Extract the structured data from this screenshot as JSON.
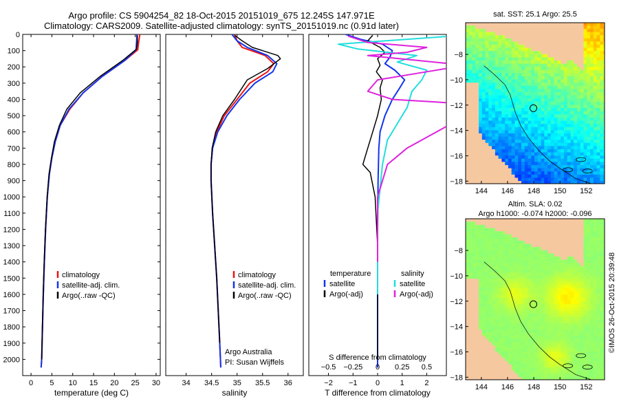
{
  "figure": {
    "title_line1": "Argo profile: CS 5904254_82 18-Oct-2015 20151019_675 12.245S 147.971E",
    "title_line2": "Climatology: CARS2009. Satellite-adjusted climatology: synTS_20151019.nc (0.91d later)",
    "credit": "©IMOS 26-Oct-2015 20:39:48"
  },
  "colors": {
    "climatology": "#ee1111",
    "satellite": "#1133ee",
    "argo": "#000000",
    "satellite_s_diff": "#22dddd",
    "argo_s_diff": "#dd22dd",
    "land": "#f6c8a0"
  },
  "chart_data": [
    {
      "type": "line",
      "id": "temperature",
      "xlabel": "temperature (deg C)",
      "ylabel": "",
      "xlim": [
        -2,
        31
      ],
      "ylim": [
        2100,
        0
      ],
      "xticks": [
        0,
        5,
        10,
        15,
        20,
        25,
        30
      ],
      "xtick_labels": [
        "0",
        "5",
        "10",
        "15",
        "20",
        "25",
        "30"
      ],
      "yticks": [
        0,
        100,
        200,
        300,
        400,
        500,
        600,
        700,
        800,
        900,
        1000,
        1100,
        1200,
        1300,
        1400,
        1500,
        1600,
        1700,
        1800,
        1900,
        2000
      ],
      "ytick_labels": [
        "0",
        "100",
        "200",
        "300",
        "400",
        "500",
        "600",
        "700",
        "800",
        "900",
        "1000",
        "1100",
        "1200",
        "1300",
        "1400",
        "1500",
        "1600",
        "1700",
        "1800",
        "1900",
        "2000"
      ],
      "legend": [
        "climatology",
        "satellite-adj. clim.",
        "Argo(..raw -QC)"
      ],
      "series": [
        {
          "name": "climatology",
          "color": "#ee1111",
          "width": 2,
          "x": [
            26.1,
            25.8,
            25.6,
            22.5,
            17.0,
            12.5,
            9.3,
            7.0,
            5.8,
            5.0,
            4.4,
            3.9,
            3.5,
            3.2,
            2.95,
            2.75,
            2.55,
            2.42
          ],
          "y": [
            0,
            50,
            95,
            160,
            260,
            360,
            460,
            560,
            660,
            760,
            860,
            1000,
            1200,
            1400,
            1600,
            1800,
            2000,
            2050
          ]
        },
        {
          "name": "satellite",
          "color": "#1133ee",
          "width": 2,
          "x": [
            25.4,
            25.3,
            25.2,
            22.5,
            17.0,
            12.5,
            9.1,
            7.0,
            5.8,
            5.0,
            4.4,
            3.9,
            3.5,
            3.2,
            2.95,
            2.75,
            2.55,
            2.42
          ],
          "y": [
            0,
            50,
            95,
            160,
            260,
            360,
            460,
            560,
            660,
            760,
            860,
            1000,
            1200,
            1400,
            1600,
            1800,
            2000,
            2050
          ]
        },
        {
          "name": "argo",
          "color": "#000000",
          "width": 1.5,
          "x": [
            25.5,
            25.5,
            25.3,
            22.0,
            16.5,
            11.8,
            8.6,
            6.8,
            5.6,
            4.9,
            4.3,
            3.85,
            3.45,
            3.15,
            2.9,
            2.72,
            2.55
          ],
          "y": [
            5,
            50,
            90,
            160,
            260,
            360,
            460,
            560,
            660,
            760,
            860,
            1000,
            1200,
            1400,
            1600,
            1800,
            2000
          ]
        }
      ]
    },
    {
      "type": "line",
      "id": "salinity",
      "xlabel": "salinity",
      "xlim": [
        33.6,
        36.3
      ],
      "ylim": [
        2100,
        0
      ],
      "xticks": [
        34,
        34.5,
        35,
        35.5,
        36
      ],
      "xtick_labels": [
        "34",
        "34.5",
        "35",
        "35.5",
        "36"
      ],
      "legend": [
        "climatology",
        "satellite-adj. clim.",
        "Argo(..raw -QC)"
      ],
      "note_line1": "Argo Australia",
      "note_line2": "PI: Susan Wijffels",
      "series": [
        {
          "name": "climatology",
          "color": "#ee1111",
          "width": 2,
          "x": [
            34.95,
            35.0,
            35.1,
            35.55,
            35.72,
            35.6,
            35.25,
            35.0,
            34.75,
            34.6,
            34.52,
            34.49,
            34.49,
            34.52,
            34.56,
            34.6,
            34.63,
            34.66,
            34.68
          ],
          "y": [
            0,
            40,
            80,
            130,
            180,
            230,
            300,
            400,
            500,
            600,
            700,
            800,
            900,
            1100,
            1300,
            1500,
            1700,
            1900,
            2050
          ]
        },
        {
          "name": "satellite",
          "color": "#1133ee",
          "width": 2,
          "x": [
            34.9,
            35.0,
            35.2,
            35.6,
            35.78,
            35.7,
            35.35,
            35.05,
            34.8,
            34.62,
            34.52,
            34.49,
            34.49,
            34.52,
            34.56,
            34.6,
            34.63,
            34.66,
            34.68
          ],
          "y": [
            0,
            40,
            80,
            130,
            180,
            230,
            300,
            400,
            500,
            600,
            700,
            800,
            900,
            1100,
            1300,
            1500,
            1700,
            1900,
            2050
          ]
        },
        {
          "name": "argo",
          "color": "#000000",
          "width": 1.5,
          "x": [
            34.95,
            35.1,
            35.3,
            35.8,
            35.85,
            35.6,
            35.2,
            34.95,
            34.72,
            34.58,
            34.51,
            34.49,
            34.49,
            34.52,
            34.56,
            34.6,
            34.63,
            34.66
          ],
          "y": [
            5,
            40,
            80,
            130,
            150,
            210,
            280,
            400,
            500,
            600,
            700,
            800,
            900,
            1100,
            1300,
            1500,
            1700,
            1900
          ]
        }
      ]
    },
    {
      "type": "line",
      "id": "differences",
      "xlabel": "T difference from climatology",
      "top_axis_title": "S difference from climatology",
      "xlim": [
        -2.8,
        2.8
      ],
      "ylim": [
        2100,
        0
      ],
      "xticks": [
        -2,
        -1,
        0,
        1,
        2
      ],
      "xtick_labels": [
        "−2",
        "−1",
        "0",
        "1",
        "2"
      ],
      "s_ticks": [
        -0.5,
        -0.25,
        0,
        0.25,
        0.5
      ],
      "s_tick_labels": [
        "−0.5",
        "−0.25",
        "0",
        "0.25",
        "0.5"
      ],
      "s_scale_per_T": 0.25,
      "legend_temperature_title": "temperature",
      "legend_salinity_title": "salinity",
      "legend_satellite": "satellite",
      "legend_argo": "Argo(-adj)",
      "series": [
        {
          "name": "T satellite",
          "color": "#1133ee",
          "width": 2,
          "x": [
            -1.3,
            -0.7,
            0.2,
            0.6,
            0.5,
            0.3,
            0.7,
            1.1,
            0.9,
            0.6,
            0.3,
            0.1,
            0.05,
            0.02,
            0.0,
            0.0,
            0.0
          ],
          "y": [
            0,
            30,
            60,
            100,
            140,
            180,
            220,
            280,
            330,
            400,
            500,
            600,
            700,
            900,
            1200,
            1600,
            2050
          ]
        },
        {
          "name": "T argo",
          "color": "#000000",
          "width": 1.5,
          "x": [
            -0.2,
            -0.4,
            0.1,
            0.3,
            0.0,
            0.1,
            -0.05,
            0.2,
            0.1,
            0.15,
            0.0,
            -0.2,
            -0.4,
            -0.6,
            -0.3,
            -0.1,
            0.0,
            0.0,
            0.0
          ],
          "y": [
            5,
            40,
            80,
            110,
            150,
            190,
            230,
            280,
            330,
            400,
            500,
            600,
            700,
            800,
            850,
            1000,
            1300,
            1700,
            2000
          ]
        },
        {
          "name": "S satellite",
          "color": "#22dddd",
          "width": 2,
          "x": [
            1.0,
            0.3,
            -0.4,
            -0.2,
            0.4,
            0.2,
            0.5,
            0.45,
            0.35,
            0.3,
            0.2,
            0.1,
            0.05,
            0.0,
            0.0
          ],
          "y": [
            0,
            30,
            60,
            90,
            130,
            170,
            220,
            280,
            350,
            450,
            550,
            650,
            800,
            1100,
            1600
          ]
        },
        {
          "name": "S argo",
          "color": "#dd22dd",
          "width": 2,
          "x": [
            -0.3,
            -0.1,
            0.5,
            0.3,
            -0.1,
            0.4,
            0.9,
            0.5,
            0.0,
            -0.1,
            0.15,
            0.7,
            0.9,
            0.6,
            0.3,
            0.1,
            0.0,
            0.0
          ],
          "y": [
            10,
            50,
            80,
            110,
            130,
            160,
            190,
            230,
            280,
            350,
            400,
            420,
            500,
            600,
            700,
            800,
            1000,
            1400
          ]
        }
      ]
    },
    {
      "type": "heatmap",
      "id": "sst_map",
      "title": "sat. SST: 25.1  Argo: 25.5",
      "xlim": [
        142.8,
        153.4
      ],
      "ylim": [
        -18.2,
        -5.5
      ],
      "xticks": [
        144,
        146,
        148,
        150,
        152
      ],
      "yticks": [
        -8,
        -10,
        -12,
        -14,
        -16,
        -18
      ],
      "xtick_labels": [
        "144",
        "146",
        "148",
        "150",
        "152"
      ],
      "ytick_labels": [
        "−8",
        "−10",
        "−12",
        "−14",
        "−16",
        "−18"
      ],
      "profile_location": [
        147.971,
        -12.245
      ],
      "colormap": "jet",
      "scale": [
        22,
        30
      ]
    },
    {
      "type": "heatmap",
      "id": "sla_map",
      "title_line1": "Altim. SLA: 0.02",
      "title_line2": "Argo h1000: -0.074 h2000: -0.096",
      "xlim": [
        142.8,
        153.4
      ],
      "ylim": [
        -18.2,
        -5.5
      ],
      "xticks": [
        144,
        146,
        148,
        150,
        152
      ],
      "yticks": [
        -8,
        -10,
        -12,
        -14,
        -16,
        -18
      ],
      "xtick_labels": [
        "144",
        "146",
        "148",
        "150",
        "152"
      ],
      "ytick_labels": [
        "−8",
        "−10",
        "−12",
        "−14",
        "−16",
        "−18"
      ],
      "profile_location": [
        147.971,
        -12.245
      ],
      "colormap": "jet",
      "scale": [
        -0.3,
        0.3
      ]
    }
  ]
}
